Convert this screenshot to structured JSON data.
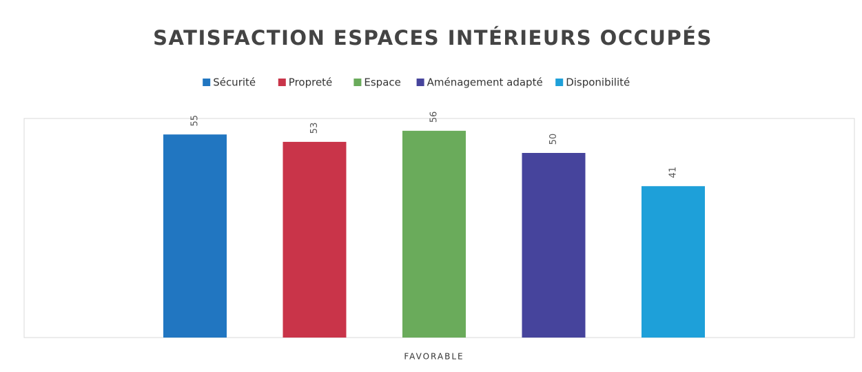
{
  "chart_data": {
    "type": "bar",
    "title": "SATISFACTION ESPACES INTÉRIEURS OCCUPÉS",
    "categories": [
      "FAVORABLE"
    ],
    "series": [
      {
        "name": "Sécurité",
        "color": "#2176c1",
        "values": [
          55
        ]
      },
      {
        "name": "Propreté",
        "color": "#c93449",
        "values": [
          53
        ]
      },
      {
        "name": "Espace",
        "color": "#6aab5b",
        "values": [
          56
        ]
      },
      {
        "name": "Aménagement adapté",
        "color": "#46449c",
        "values": [
          50
        ]
      },
      {
        "name": "Disponibilité",
        "color": "#1ea0d9",
        "values": [
          41
        ]
      }
    ],
    "ylim": [
      0,
      60
    ],
    "legend": "top"
  }
}
